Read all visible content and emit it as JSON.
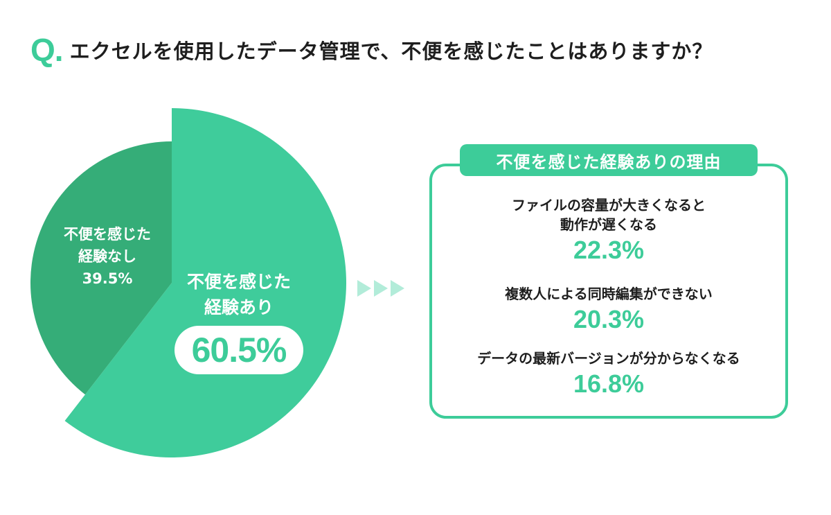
{
  "question": {
    "mark": "Q",
    "dot": ".",
    "text": "エクセルを使用したデータ管理で、不便を感じたことはありますか？"
  },
  "colors": {
    "accent": "#3dcc99",
    "pie_yes": "#3fcc9b",
    "pie_no": "#35ad78",
    "arrow": "#b2ecd9"
  },
  "pie": {
    "no": {
      "label_line1": "不便を感じた",
      "label_line2": "経験なし",
      "value": "39.5%"
    },
    "yes": {
      "label_line1": "不便を感じた",
      "label_line2": "経験あり",
      "value": "60.5%"
    }
  },
  "reasons": {
    "heading": "不便を感じた経験ありの理由",
    "items": [
      {
        "line1": "ファイルの容量が大きくなると",
        "line2": "動作が遅くなる",
        "value": "22.3%"
      },
      {
        "line1": "複数人による同時編集ができない",
        "line2": "",
        "value": "20.3%"
      },
      {
        "line1": "データの最新バージョンが分からなくなる",
        "line2": "",
        "value": "16.8%"
      }
    ]
  },
  "chart_data": [
    {
      "type": "pie",
      "categories": [
        "不便を感じた経験あり",
        "不便を感じた経験なし"
      ],
      "values": [
        60.5,
        39.5
      ],
      "unit": "%",
      "title": "エクセルを使用したデータ管理で、不便を感じたことはありますか？"
    },
    {
      "type": "table",
      "title": "不便を感じた経験ありの理由",
      "categories": [
        "ファイルの容量が大きくなると動作が遅くなる",
        "複数人による同時編集ができない",
        "データの最新バージョンが分からなくなる"
      ],
      "values": [
        22.3,
        20.3,
        16.8
      ],
      "unit": "%"
    }
  ]
}
